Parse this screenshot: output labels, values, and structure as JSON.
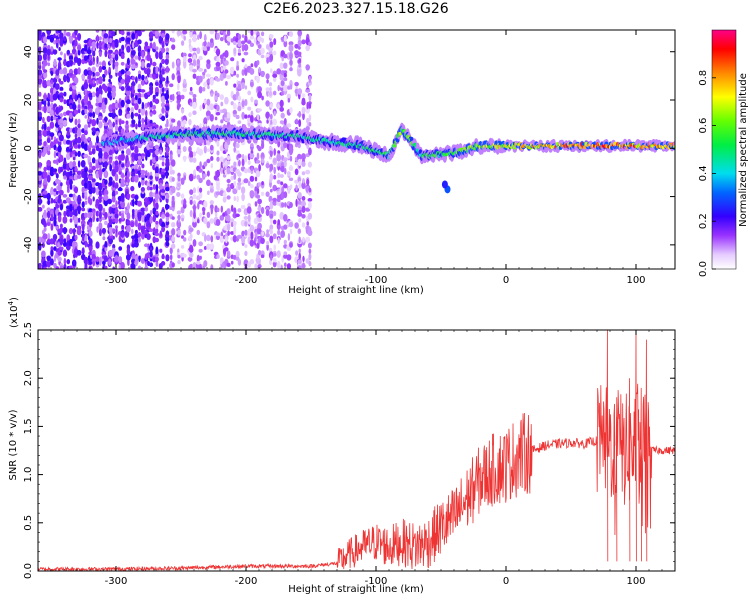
{
  "title": "C2E6.2023.327.15.18.G26",
  "chart_data": [
    {
      "type": "heatmap",
      "title": "C2E6.2023.327.15.18.G26",
      "xlabel": "Height of straight line (km)",
      "ylabel": "Frequency (Hz)",
      "xlim": [
        -360,
        130
      ],
      "ylim": [
        -50,
        49
      ],
      "x_ticks": [
        -300,
        -200,
        -100,
        0,
        100
      ],
      "y_ticks": [
        -40,
        -20,
        0,
        20,
        40
      ],
      "colorbar": {
        "label": "Normalized spectral amplitude",
        "range": [
          0.0,
          1.0
        ],
        "ticks": [
          "0.0",
          "0.2",
          "0.4",
          "0.6",
          "0.8"
        ],
        "colormap": "rainbow (white-violet-blue-cyan-green-yellow-orange-red-magenta)"
      },
      "ridge": [
        {
          "x": -310,
          "freq": 2,
          "amp": 0.4
        },
        {
          "x": -270,
          "freq": 5,
          "amp": 0.5
        },
        {
          "x": -240,
          "freq": 6,
          "amp": 0.55
        },
        {
          "x": -200,
          "freq": 6,
          "amp": 0.55
        },
        {
          "x": -160,
          "freq": 5,
          "amp": 0.5
        },
        {
          "x": -140,
          "freq": 3,
          "amp": 0.5
        },
        {
          "x": -110,
          "freq": 1,
          "amp": 0.55
        },
        {
          "x": -90,
          "freq": -3,
          "amp": 0.55
        },
        {
          "x": -80,
          "freq": 8,
          "amp": 0.65
        },
        {
          "x": -65,
          "freq": -3,
          "amp": 0.55
        },
        {
          "x": -40,
          "freq": -2,
          "amp": 0.6
        },
        {
          "x": -20,
          "freq": 1,
          "amp": 0.7
        },
        {
          "x": 0,
          "freq": 1,
          "amp": 0.75
        },
        {
          "x": 30,
          "freq": 1,
          "amp": 0.85
        },
        {
          "x": 60,
          "freq": 1,
          "amp": 0.9
        },
        {
          "x": 90,
          "freq": 1,
          "amp": 0.9
        },
        {
          "x": 130,
          "freq": 1,
          "amp": 0.85
        }
      ],
      "noise_region": {
        "x": [
          -360,
          -150
        ],
        "freq": [
          -50,
          49
        ]
      }
    },
    {
      "type": "line",
      "xlabel": "Height of straight line (km)",
      "ylabel": "SNR (10 * v/v)",
      "y_multiplier": "(x10^4)",
      "xlim": [
        -360,
        130
      ],
      "ylim": [
        0.0,
        2.5
      ],
      "x_ticks": [
        -300,
        -200,
        -100,
        0,
        100
      ],
      "y_ticks": [
        "0.0",
        "0.5",
        "1.0",
        "1.5",
        "2.0",
        "2.5"
      ],
      "series_color": "#ee3333",
      "x": [
        -360,
        -300,
        -250,
        -200,
        -150,
        -130,
        -120,
        -110,
        -100,
        -90,
        -80,
        -70,
        -60,
        -50,
        -40,
        -30,
        -20,
        -10,
        0,
        10,
        20,
        30,
        40,
        50,
        60,
        70,
        75,
        80,
        85,
        90,
        95,
        100,
        105,
        110,
        120,
        130
      ],
      "y": [
        0.02,
        0.02,
        0.03,
        0.05,
        0.05,
        0.08,
        0.18,
        0.25,
        0.3,
        0.25,
        0.3,
        0.25,
        0.3,
        0.45,
        0.55,
        0.75,
        0.95,
        1.05,
        1.1,
        1.2,
        1.25,
        1.3,
        1.32,
        1.33,
        1.32,
        1.35,
        1.35,
        1.3,
        1.3,
        1.25,
        1.25,
        1.3,
        1.25,
        1.25,
        1.25,
        1.25
      ],
      "peaks": [
        {
          "x": 78,
          "y": 2.5
        },
        {
          "x": 85,
          "y": 1.6
        },
        {
          "x": 95,
          "y": 2.0
        },
        {
          "x": 100,
          "y": 2.5
        },
        {
          "x": 104,
          "y": 1.9
        },
        {
          "x": 108,
          "y": 2.4
        }
      ]
    }
  ]
}
